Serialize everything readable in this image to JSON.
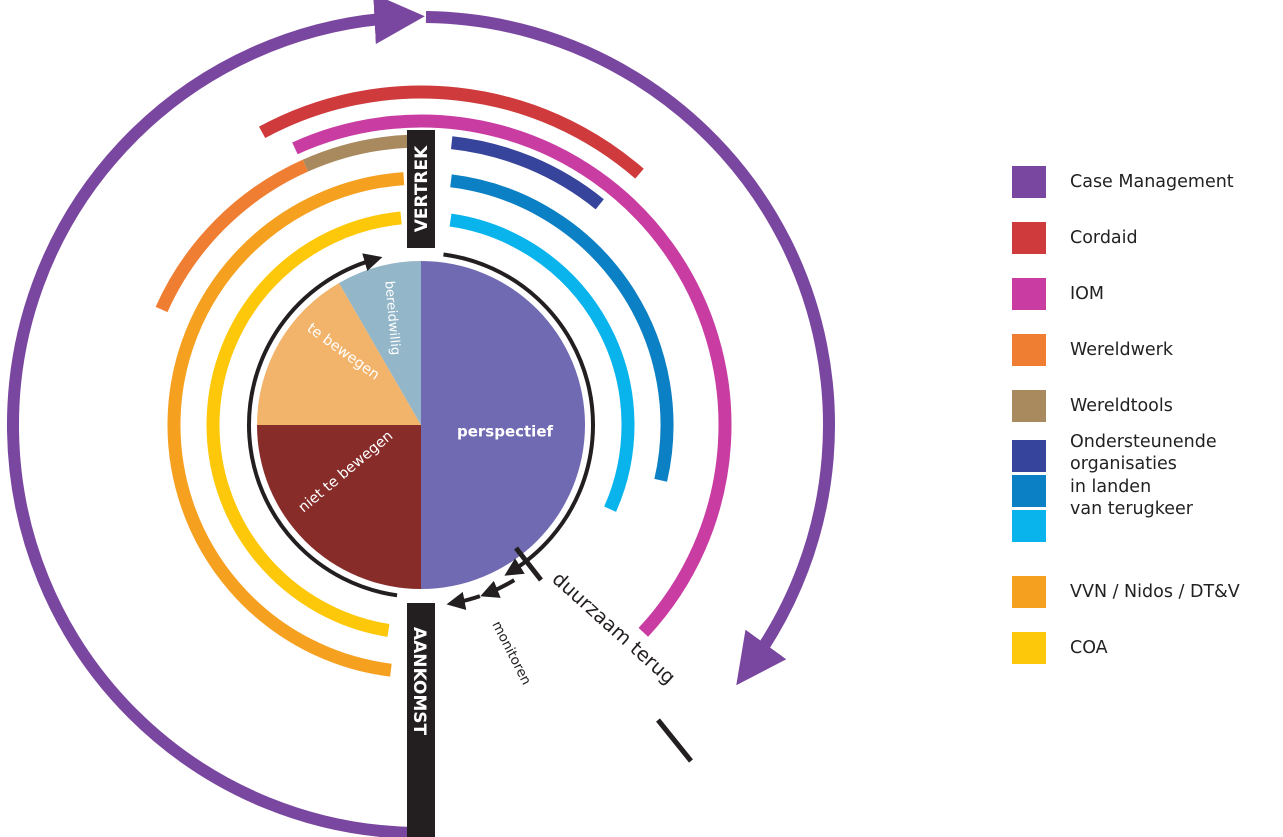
{
  "diagram": {
    "labels": {
      "vertrek": "VERTREK",
      "aankomst": "AANKOMST",
      "duurzaam_terug": "duurzaam terug",
      "monitoren": "monitoren"
    },
    "pie": {
      "segments": [
        {
          "label": "perspectief",
          "color": "#6f6ab2"
        },
        {
          "label": "niet te bewegen",
          "color": "#872c29"
        },
        {
          "label": "te bewegen",
          "color": "#f2b36b"
        },
        {
          "label": "bereidwillig",
          "color": "#93b6c8"
        }
      ]
    },
    "colors": {
      "case_management": "#7a47a0",
      "cordaid": "#cf3b3c",
      "iom": "#c93da3",
      "wereldwerk": "#f07e32",
      "wereldtools": "#a88a5e",
      "ondersteunende_1": "#37449b",
      "ondersteunende_2": "#0b80c4",
      "ondersteunende_3": "#09b4ec",
      "vvn": "#f6a020",
      "coa": "#fdc80a",
      "bar": "#231f20"
    }
  },
  "legend": {
    "items": [
      {
        "label": "Case Management",
        "color": "#7a47a0"
      },
      {
        "label": "Cordaid",
        "color": "#cf3b3c"
      },
      {
        "label": "IOM",
        "color": "#c93da3"
      },
      {
        "label": "Wereldwerk",
        "color": "#f07e32"
      },
      {
        "label": "Wereldtools",
        "color": "#a88a5e"
      }
    ],
    "group": {
      "label": "Ondersteunende\norganisaties\nin landen\nvan terugkeer",
      "colors": [
        "#37449b",
        "#0b80c4",
        "#09b4ec"
      ]
    },
    "items_after": [
      {
        "label": "VVN / Nidos / DT&V",
        "color": "#f6a020"
      },
      {
        "label": "COA",
        "color": "#fdc80a"
      }
    ]
  }
}
